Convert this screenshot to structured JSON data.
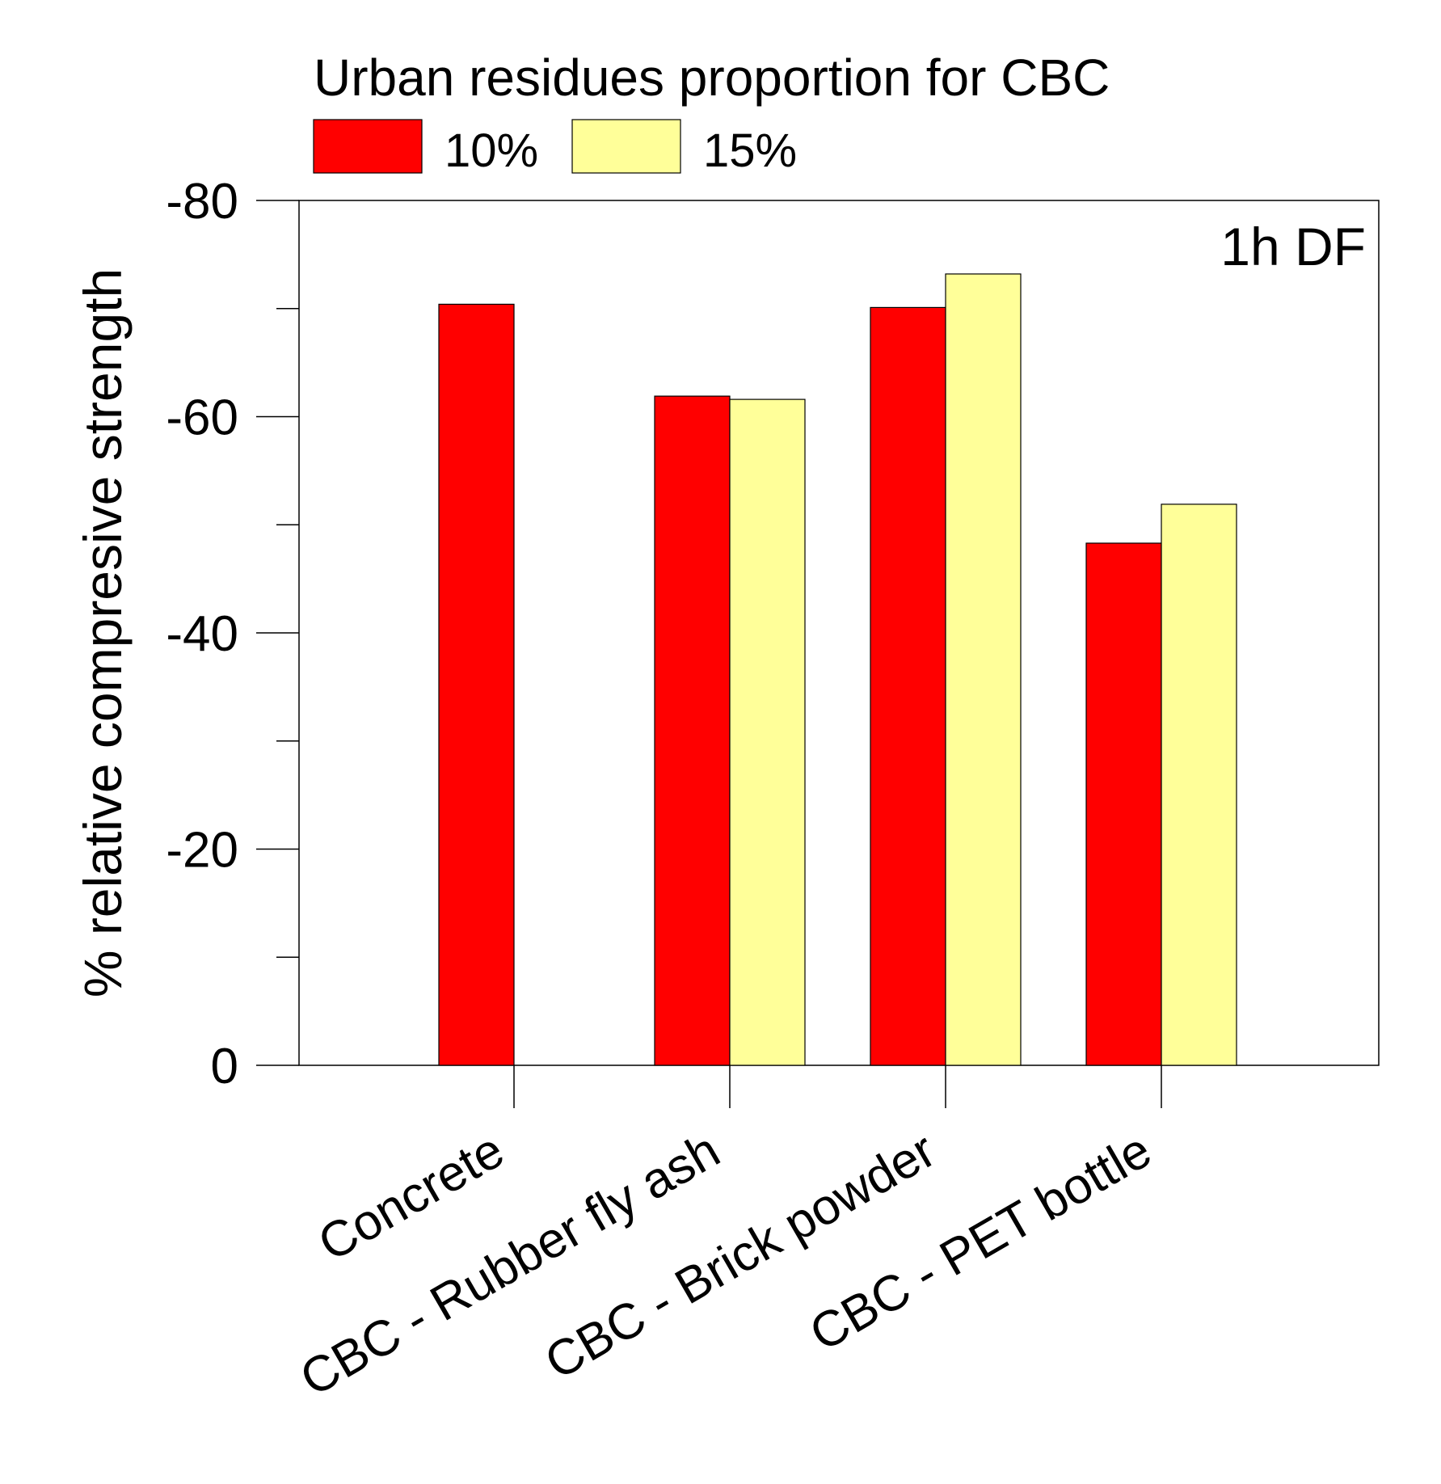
{
  "chart_data": {
    "type": "bar",
    "legend_title": "Urban residues proportion for CBC",
    "annotation": "1h DF",
    "ylabel": "% relative compresive strength",
    "xlabel": "",
    "ylim": [
      0,
      -80
    ],
    "y_ticks": [
      0,
      -20,
      -40,
      -60,
      -80
    ],
    "y_tick_labels": [
      "0",
      "-20",
      "-40",
      "-60",
      "-80"
    ],
    "y_minor_ticks": [
      -10,
      -30,
      -50,
      -70
    ],
    "categories": [
      "Concrete",
      "CBC - Rubber fly ash",
      "CBC - Brick powder",
      "CBC - PET bottle"
    ],
    "series": [
      {
        "name": "10%",
        "color": "#ff0000",
        "values": [
          -70.4,
          -61.9,
          -70.1,
          -48.3
        ]
      },
      {
        "name": "15%",
        "color": "#ffff99",
        "values": [
          null,
          -61.6,
          -73.2,
          -51.9
        ]
      }
    ],
    "legend_position": "top"
  }
}
